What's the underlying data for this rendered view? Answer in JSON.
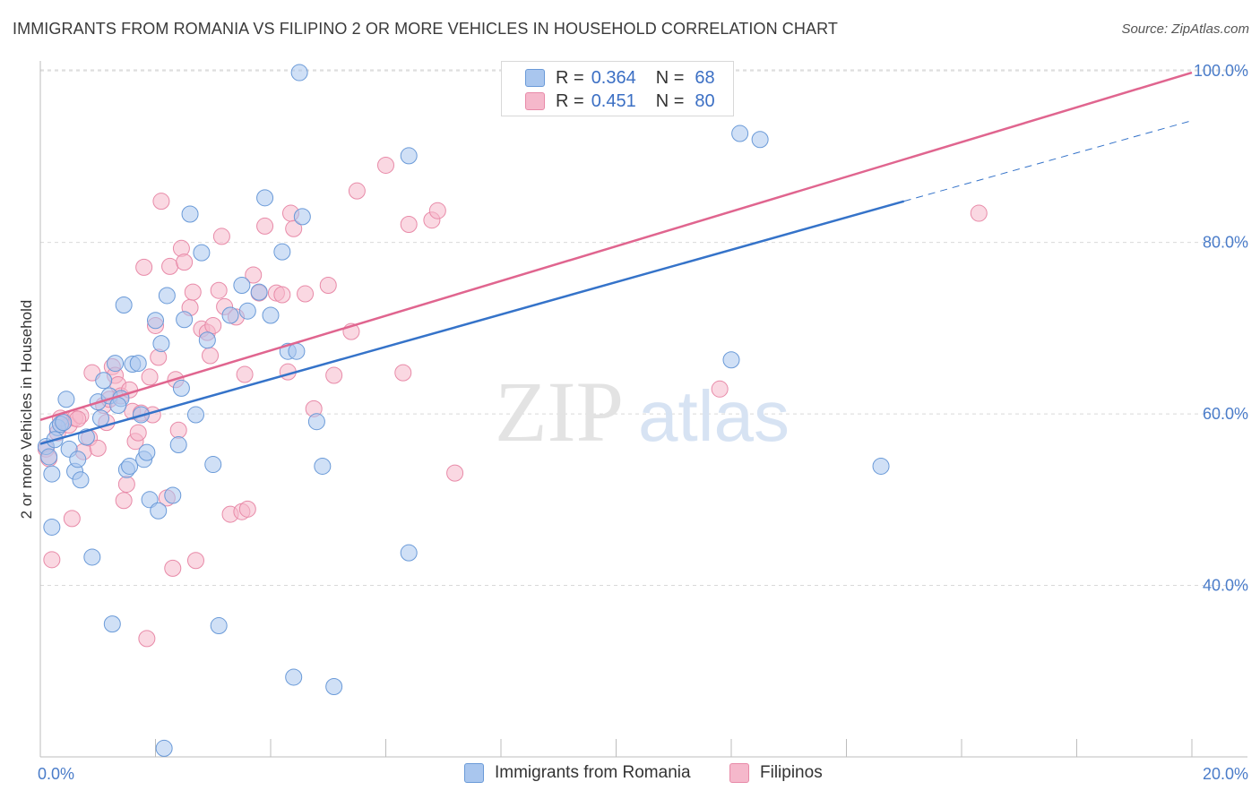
{
  "title": "IMMIGRANTS FROM ROMANIA VS FILIPINO 2 OR MORE VEHICLES IN HOUSEHOLD CORRELATION CHART",
  "source": "Source: ZipAtlas.com",
  "watermark": {
    "zip": "ZIP",
    "atlas": "atlas"
  },
  "colors": {
    "blue_fill": "#a9c6ee",
    "blue_stroke": "#6a9ad8",
    "blue_line": "#3573c9",
    "pink_fill": "#f5b8cb",
    "pink_stroke": "#e88aa8",
    "pink_line": "#e0658f",
    "tick_text": "#4a7cc9",
    "grid": "#d9d9d9"
  },
  "legend_top": [
    {
      "r_label": "R =",
      "r_value": "0.364",
      "n_label": "N =",
      "n_value": "68",
      "color": "#a9c6ee",
      "border": "#6a9ad8"
    },
    {
      "r_label": "R =",
      "r_value": "0.451",
      "n_label": "N =",
      "n_value": "80",
      "color": "#f5b8cb",
      "border": "#e88aa8"
    }
  ],
  "legend_bottom": [
    {
      "label": "Immigrants from Romania",
      "color": "#a9c6ee",
      "border": "#6a9ad8"
    },
    {
      "label": "Filipinos",
      "color": "#f5b8cb",
      "border": "#e88aa8"
    }
  ],
  "chart_data": {
    "type": "scatter",
    "title": "IMMIGRANTS FROM ROMANIA VS FILIPINO 2 OR MORE VEHICLES IN HOUSEHOLD CORRELATION CHART",
    "xlabel": "",
    "ylabel": "2 or more Vehicles in Household",
    "xlim": [
      0,
      20
    ],
    "ylim": [
      20,
      102
    ],
    "x_tick_labels": [
      "0.0%",
      "20.0%"
    ],
    "y_ticks": [
      40,
      60,
      80,
      100
    ],
    "y_tick_labels": [
      "40.0%",
      "60.0%",
      "80.0%",
      "100.0%"
    ],
    "grid": true,
    "series": [
      {
        "name": "Immigrants from Romania",
        "R": 0.364,
        "N": 68,
        "trend": {
          "x0": 0,
          "y0": 56.5,
          "x1": 15,
          "y1": 84.8,
          "dash_to_x": 20,
          "dash_to_y": 94.2
        },
        "points": [
          [
            0.1,
            56.2
          ],
          [
            0.15,
            55.0
          ],
          [
            0.2,
            53.0
          ],
          [
            0.2,
            46.8
          ],
          [
            0.3,
            58.4
          ],
          [
            0.35,
            58.8
          ],
          [
            0.45,
            61.7
          ],
          [
            0.5,
            55.9
          ],
          [
            0.6,
            53.3
          ],
          [
            0.65,
            54.7
          ],
          [
            0.7,
            52.3
          ],
          [
            0.8,
            57.3
          ],
          [
            0.9,
            43.3
          ],
          [
            1.0,
            61.4
          ],
          [
            1.05,
            59.5
          ],
          [
            1.1,
            63.9
          ],
          [
            1.2,
            62.1
          ],
          [
            1.25,
            35.5
          ],
          [
            1.3,
            65.9
          ],
          [
            1.4,
            61.8
          ],
          [
            1.45,
            72.7
          ],
          [
            1.5,
            53.5
          ],
          [
            1.55,
            53.9
          ],
          [
            1.6,
            65.8
          ],
          [
            1.7,
            65.9
          ],
          [
            1.75,
            59.9
          ],
          [
            1.8,
            54.7
          ],
          [
            1.85,
            55.5
          ],
          [
            1.9,
            50.0
          ],
          [
            2.0,
            70.9
          ],
          [
            2.05,
            48.7
          ],
          [
            2.1,
            68.2
          ],
          [
            2.2,
            73.8
          ],
          [
            2.3,
            50.5
          ],
          [
            2.4,
            56.4
          ],
          [
            2.45,
            63.0
          ],
          [
            2.5,
            71.0
          ],
          [
            2.6,
            83.3
          ],
          [
            2.7,
            59.9
          ],
          [
            2.8,
            78.8
          ],
          [
            2.9,
            68.6
          ],
          [
            3.0,
            54.1
          ],
          [
            3.1,
            35.3
          ],
          [
            3.3,
            71.5
          ],
          [
            3.5,
            75.0
          ],
          [
            3.6,
            72.0
          ],
          [
            3.8,
            74.2
          ],
          [
            3.9,
            85.2
          ],
          [
            4.0,
            71.5
          ],
          [
            4.2,
            78.9
          ],
          [
            4.3,
            67.3
          ],
          [
            4.45,
            67.3
          ],
          [
            4.55,
            83.0
          ],
          [
            2.15,
            21.0
          ],
          [
            4.4,
            29.3
          ],
          [
            4.5,
            99.8
          ],
          [
            4.8,
            59.1
          ],
          [
            4.9,
            53.9
          ],
          [
            5.1,
            28.2
          ],
          [
            6.4,
            43.8
          ],
          [
            6.4,
            90.1
          ],
          [
            12.0,
            66.3
          ],
          [
            12.15,
            92.7
          ],
          [
            12.5,
            92.0
          ],
          [
            14.6,
            53.9
          ],
          [
            0.25,
            57.0
          ],
          [
            0.4,
            59.0
          ],
          [
            1.35,
            61.0
          ]
        ]
      },
      {
        "name": "Filipinos",
        "R": 0.451,
        "N": 80,
        "trend": {
          "x0": 0,
          "y0": 59.3,
          "x1": 20,
          "y1": 99.8
        },
        "points": [
          [
            0.1,
            55.9
          ],
          [
            0.15,
            54.8
          ],
          [
            0.2,
            43.0
          ],
          [
            0.3,
            57.8
          ],
          [
            0.4,
            59.2
          ],
          [
            0.5,
            58.7
          ],
          [
            0.55,
            47.8
          ],
          [
            0.6,
            59.5
          ],
          [
            0.7,
            59.8
          ],
          [
            0.75,
            55.6
          ],
          [
            0.85,
            57.2
          ],
          [
            0.9,
            64.8
          ],
          [
            1.0,
            56.0
          ],
          [
            1.1,
            61.0
          ],
          [
            1.15,
            59.0
          ],
          [
            1.2,
            61.7
          ],
          [
            1.25,
            65.5
          ],
          [
            1.3,
            64.5
          ],
          [
            1.35,
            63.4
          ],
          [
            1.4,
            62.1
          ],
          [
            1.45,
            49.9
          ],
          [
            1.5,
            51.8
          ],
          [
            1.6,
            60.3
          ],
          [
            1.65,
            56.8
          ],
          [
            1.7,
            57.8
          ],
          [
            1.75,
            60.1
          ],
          [
            1.8,
            77.1
          ],
          [
            1.85,
            33.8
          ],
          [
            1.9,
            64.3
          ],
          [
            1.95,
            59.9
          ],
          [
            2.0,
            70.3
          ],
          [
            2.05,
            66.6
          ],
          [
            2.1,
            84.8
          ],
          [
            2.2,
            50.2
          ],
          [
            2.25,
            77.2
          ],
          [
            2.3,
            42.0
          ],
          [
            2.4,
            58.1
          ],
          [
            2.45,
            79.3
          ],
          [
            2.5,
            77.7
          ],
          [
            2.6,
            72.4
          ],
          [
            2.65,
            74.2
          ],
          [
            2.7,
            42.9
          ],
          [
            2.8,
            69.9
          ],
          [
            2.9,
            69.5
          ],
          [
            2.95,
            66.8
          ],
          [
            3.0,
            70.3
          ],
          [
            3.1,
            74.4
          ],
          [
            3.15,
            80.7
          ],
          [
            3.2,
            72.5
          ],
          [
            3.3,
            48.3
          ],
          [
            3.4,
            71.3
          ],
          [
            3.5,
            48.6
          ],
          [
            3.55,
            64.6
          ],
          [
            3.6,
            48.9
          ],
          [
            3.7,
            76.2
          ],
          [
            3.8,
            74.1
          ],
          [
            3.9,
            81.9
          ],
          [
            4.1,
            74.1
          ],
          [
            4.2,
            73.9
          ],
          [
            4.3,
            64.9
          ],
          [
            4.35,
            83.4
          ],
          [
            4.4,
            81.6
          ],
          [
            4.6,
            74.0
          ],
          [
            4.75,
            60.6
          ],
          [
            5.0,
            75.0
          ],
          [
            5.1,
            64.5
          ],
          [
            5.4,
            69.6
          ],
          [
            5.5,
            86.0
          ],
          [
            6.0,
            89.0
          ],
          [
            6.3,
            64.8
          ],
          [
            6.4,
            82.1
          ],
          [
            6.8,
            82.6
          ],
          [
            6.9,
            83.7
          ],
          [
            7.2,
            53.1
          ],
          [
            11.8,
            62.9
          ],
          [
            16.3,
            83.4
          ],
          [
            0.35,
            59.5
          ],
          [
            0.65,
            59.4
          ],
          [
            1.55,
            62.8
          ],
          [
            2.35,
            64.0
          ]
        ]
      }
    ]
  }
}
